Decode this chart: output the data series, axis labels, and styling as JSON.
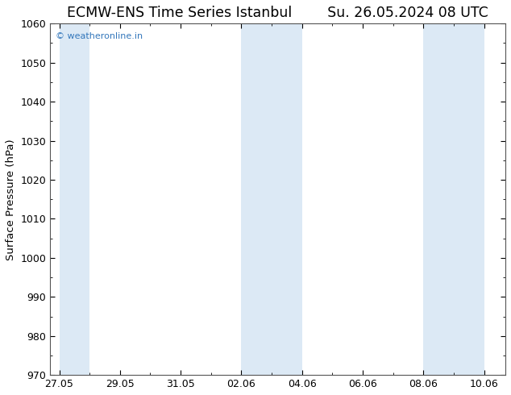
{
  "title_left": "ECMW-ENS Time Series Istanbul",
  "title_right": "Su. 26.05.2024 08 UTC",
  "ylabel": "Surface Pressure (hPa)",
  "ylim": [
    970,
    1060
  ],
  "yticks": [
    970,
    980,
    990,
    1000,
    1010,
    1020,
    1030,
    1040,
    1050,
    1060
  ],
  "x_tick_labels": [
    "27.05",
    "29.05",
    "31.05",
    "02.06",
    "04.06",
    "06.06",
    "08.06",
    "10.06"
  ],
  "background_color": "#ffffff",
  "plot_bg_color": "#ffffff",
  "band_color": "#dce9f5",
  "bands": [
    {
      "start": 0,
      "end": 1
    },
    {
      "start": 6,
      "end": 8
    },
    {
      "start": 12,
      "end": 14
    }
  ],
  "watermark_text": "© weatheronline.in",
  "watermark_color": "#3377bb",
  "title_fontsize": 12.5,
  "tick_fontsize": 9,
  "ylabel_fontsize": 9.5,
  "figsize": [
    6.34,
    4.9
  ],
  "dpi": 100
}
